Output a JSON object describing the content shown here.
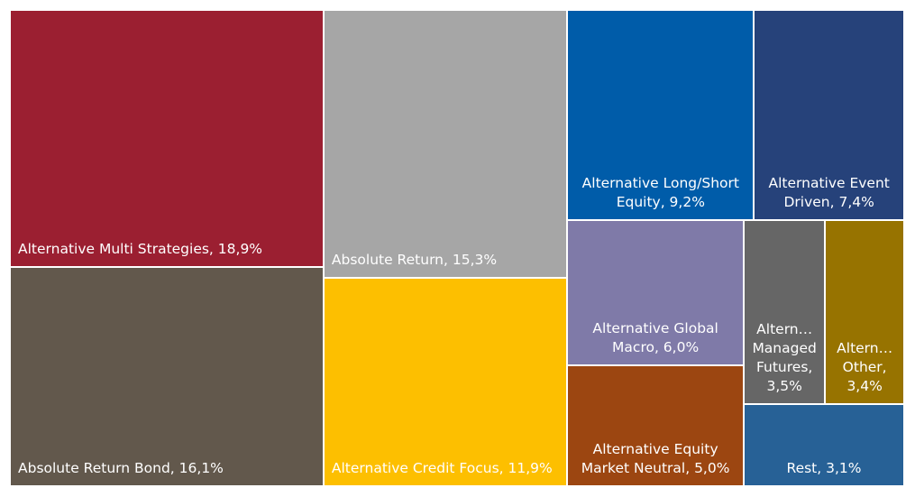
{
  "chart_data": {
    "type": "treemap",
    "labels": [
      "Alternative Multi Strategies, 18,9%",
      "Absolute Return Bond, 16,1%",
      "Absolute Return, 15,3%",
      "Alternative Credit Focus, 11,9%",
      "Alternative Long/Short Equity, 9,2%",
      "Alternative Event Driven, 7,4%",
      "Alternative Global Macro, 6,0%",
      "Alternative Equity Market Neutral, 5,0%",
      "Altern… Managed Futures, 3,5%",
      "Altern… Other, 3,4%",
      "Rest, 3,1%"
    ],
    "values": [
      18.9,
      16.1,
      15.3,
      11.9,
      9.2,
      7.4,
      6.0,
      5.0,
      3.5,
      3.4,
      3.1
    ],
    "colors": [
      "#9b1f31",
      "#62584c",
      "#a6a6a6",
      "#fdbf00",
      "#005ca9",
      "#26427a",
      "#7f7aa8",
      "#9c4611",
      "#666666",
      "#977300",
      "#276196"
    ]
  }
}
